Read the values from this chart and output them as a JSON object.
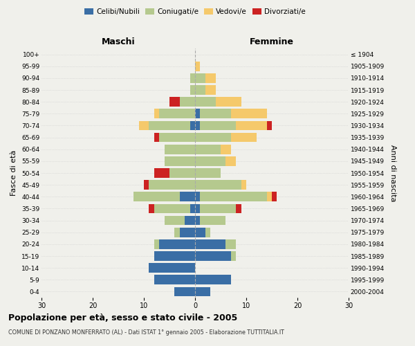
{
  "age_groups": [
    "0-4",
    "5-9",
    "10-14",
    "15-19",
    "20-24",
    "25-29",
    "30-34",
    "35-39",
    "40-44",
    "45-49",
    "50-54",
    "55-59",
    "60-64",
    "65-69",
    "70-74",
    "75-79",
    "80-84",
    "85-89",
    "90-94",
    "95-99",
    "100+"
  ],
  "birth_years": [
    "2000-2004",
    "1995-1999",
    "1990-1994",
    "1985-1989",
    "1980-1984",
    "1975-1979",
    "1970-1974",
    "1965-1969",
    "1960-1964",
    "1955-1959",
    "1950-1954",
    "1945-1949",
    "1940-1944",
    "1935-1939",
    "1930-1934",
    "1925-1929",
    "1920-1924",
    "1915-1919",
    "1910-1914",
    "1905-1909",
    "≤ 1904"
  ],
  "colors": {
    "celibe": "#3a6ea5",
    "coniugato": "#b5c98e",
    "vedovo": "#f5c96b",
    "divorziato": "#cc2222"
  },
  "males": {
    "celibe": [
      4,
      8,
      9,
      8,
      7,
      3,
      2,
      1,
      3,
      0,
      0,
      0,
      0,
      0,
      1,
      0,
      0,
      0,
      0,
      0,
      0
    ],
    "coniugato": [
      0,
      0,
      0,
      0,
      1,
      1,
      4,
      7,
      9,
      9,
      5,
      6,
      6,
      7,
      8,
      7,
      3,
      1,
      1,
      0,
      0
    ],
    "vedovo": [
      0,
      0,
      0,
      0,
      0,
      0,
      0,
      0,
      0,
      0,
      0,
      0,
      0,
      0,
      2,
      1,
      0,
      0,
      0,
      0,
      0
    ],
    "divorziato": [
      0,
      0,
      0,
      0,
      0,
      0,
      0,
      1,
      0,
      1,
      3,
      0,
      0,
      1,
      0,
      0,
      2,
      0,
      0,
      0,
      0
    ]
  },
  "females": {
    "nubile": [
      3,
      7,
      0,
      7,
      6,
      2,
      1,
      1,
      1,
      0,
      0,
      0,
      0,
      0,
      1,
      1,
      0,
      0,
      0,
      0,
      0
    ],
    "coniugata": [
      0,
      0,
      0,
      1,
      2,
      1,
      5,
      7,
      13,
      9,
      5,
      6,
      5,
      7,
      7,
      6,
      4,
      2,
      2,
      0,
      0
    ],
    "vedova": [
      0,
      0,
      0,
      0,
      0,
      0,
      0,
      0,
      1,
      1,
      0,
      2,
      2,
      5,
      6,
      7,
      5,
      2,
      2,
      1,
      0
    ],
    "divorziata": [
      0,
      0,
      0,
      0,
      0,
      0,
      0,
      1,
      1,
      0,
      0,
      0,
      0,
      0,
      1,
      0,
      0,
      0,
      0,
      0,
      0
    ]
  },
  "xlim": 30,
  "title_main": "Popolazione per età, sesso e stato civile - 2005",
  "title_sub": "COMUNE DI PONZANO MONFERRATO (AL) - Dati ISTAT 1° gennaio 2005 - Elaborazione TUTTITALIA.IT",
  "ylabel_left": "Fasce di età",
  "ylabel_right": "Anni di nascita",
  "label_maschi": "Maschi",
  "label_femmine": "Femmine",
  "legend_labels": [
    "Celibi/Nubili",
    "Coniugati/e",
    "Vedovi/e",
    "Divorziati/e"
  ],
  "bg_color": "#f0f0eb",
  "bar_bg": "#f0f0eb",
  "grid_color": "#cccccc"
}
